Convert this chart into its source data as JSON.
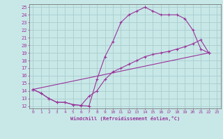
{
  "xlabel": "Windchill (Refroidissement éolien,°C)",
  "bg_color": "#c8e8e8",
  "line_color": "#993399",
  "grid_color": "#aacccc",
  "spine_color": "#777777",
  "xlim": [
    -0.5,
    23.5
  ],
  "ylim": [
    11.7,
    25.4
  ],
  "xticks": [
    0,
    1,
    2,
    3,
    4,
    5,
    6,
    7,
    8,
    9,
    10,
    11,
    12,
    13,
    14,
    15,
    16,
    17,
    18,
    19,
    20,
    21,
    22,
    23
  ],
  "yticks": [
    12,
    13,
    14,
    15,
    16,
    17,
    18,
    19,
    20,
    21,
    22,
    23,
    24,
    25
  ],
  "line1_x": [
    0,
    1,
    2,
    3,
    4,
    5,
    6,
    7,
    8,
    9,
    10,
    11,
    12,
    13,
    14,
    15,
    16,
    17,
    18,
    19,
    20,
    21,
    22
  ],
  "line1_y": [
    14.2,
    13.7,
    13.0,
    12.5,
    12.5,
    12.2,
    12.1,
    12.0,
    15.5,
    18.5,
    20.5,
    23.0,
    24.0,
    24.5,
    25.0,
    24.5,
    24.0,
    24.0,
    24.0,
    23.5,
    22.0,
    19.5,
    19.0
  ],
  "line2_x": [
    0,
    22
  ],
  "line2_y": [
    14.2,
    19.0
  ],
  "line3_x": [
    0,
    1,
    2,
    3,
    4,
    5,
    6,
    7,
    8,
    9,
    10,
    11,
    12,
    13,
    14,
    15,
    16,
    17,
    18,
    19,
    20,
    21,
    22
  ],
  "line3_y": [
    14.2,
    13.7,
    13.0,
    12.5,
    12.5,
    12.2,
    12.1,
    13.3,
    14.0,
    15.5,
    16.5,
    17.0,
    17.5,
    18.0,
    18.5,
    18.8,
    19.0,
    19.2,
    19.5,
    19.8,
    20.2,
    20.7,
    19.0
  ]
}
